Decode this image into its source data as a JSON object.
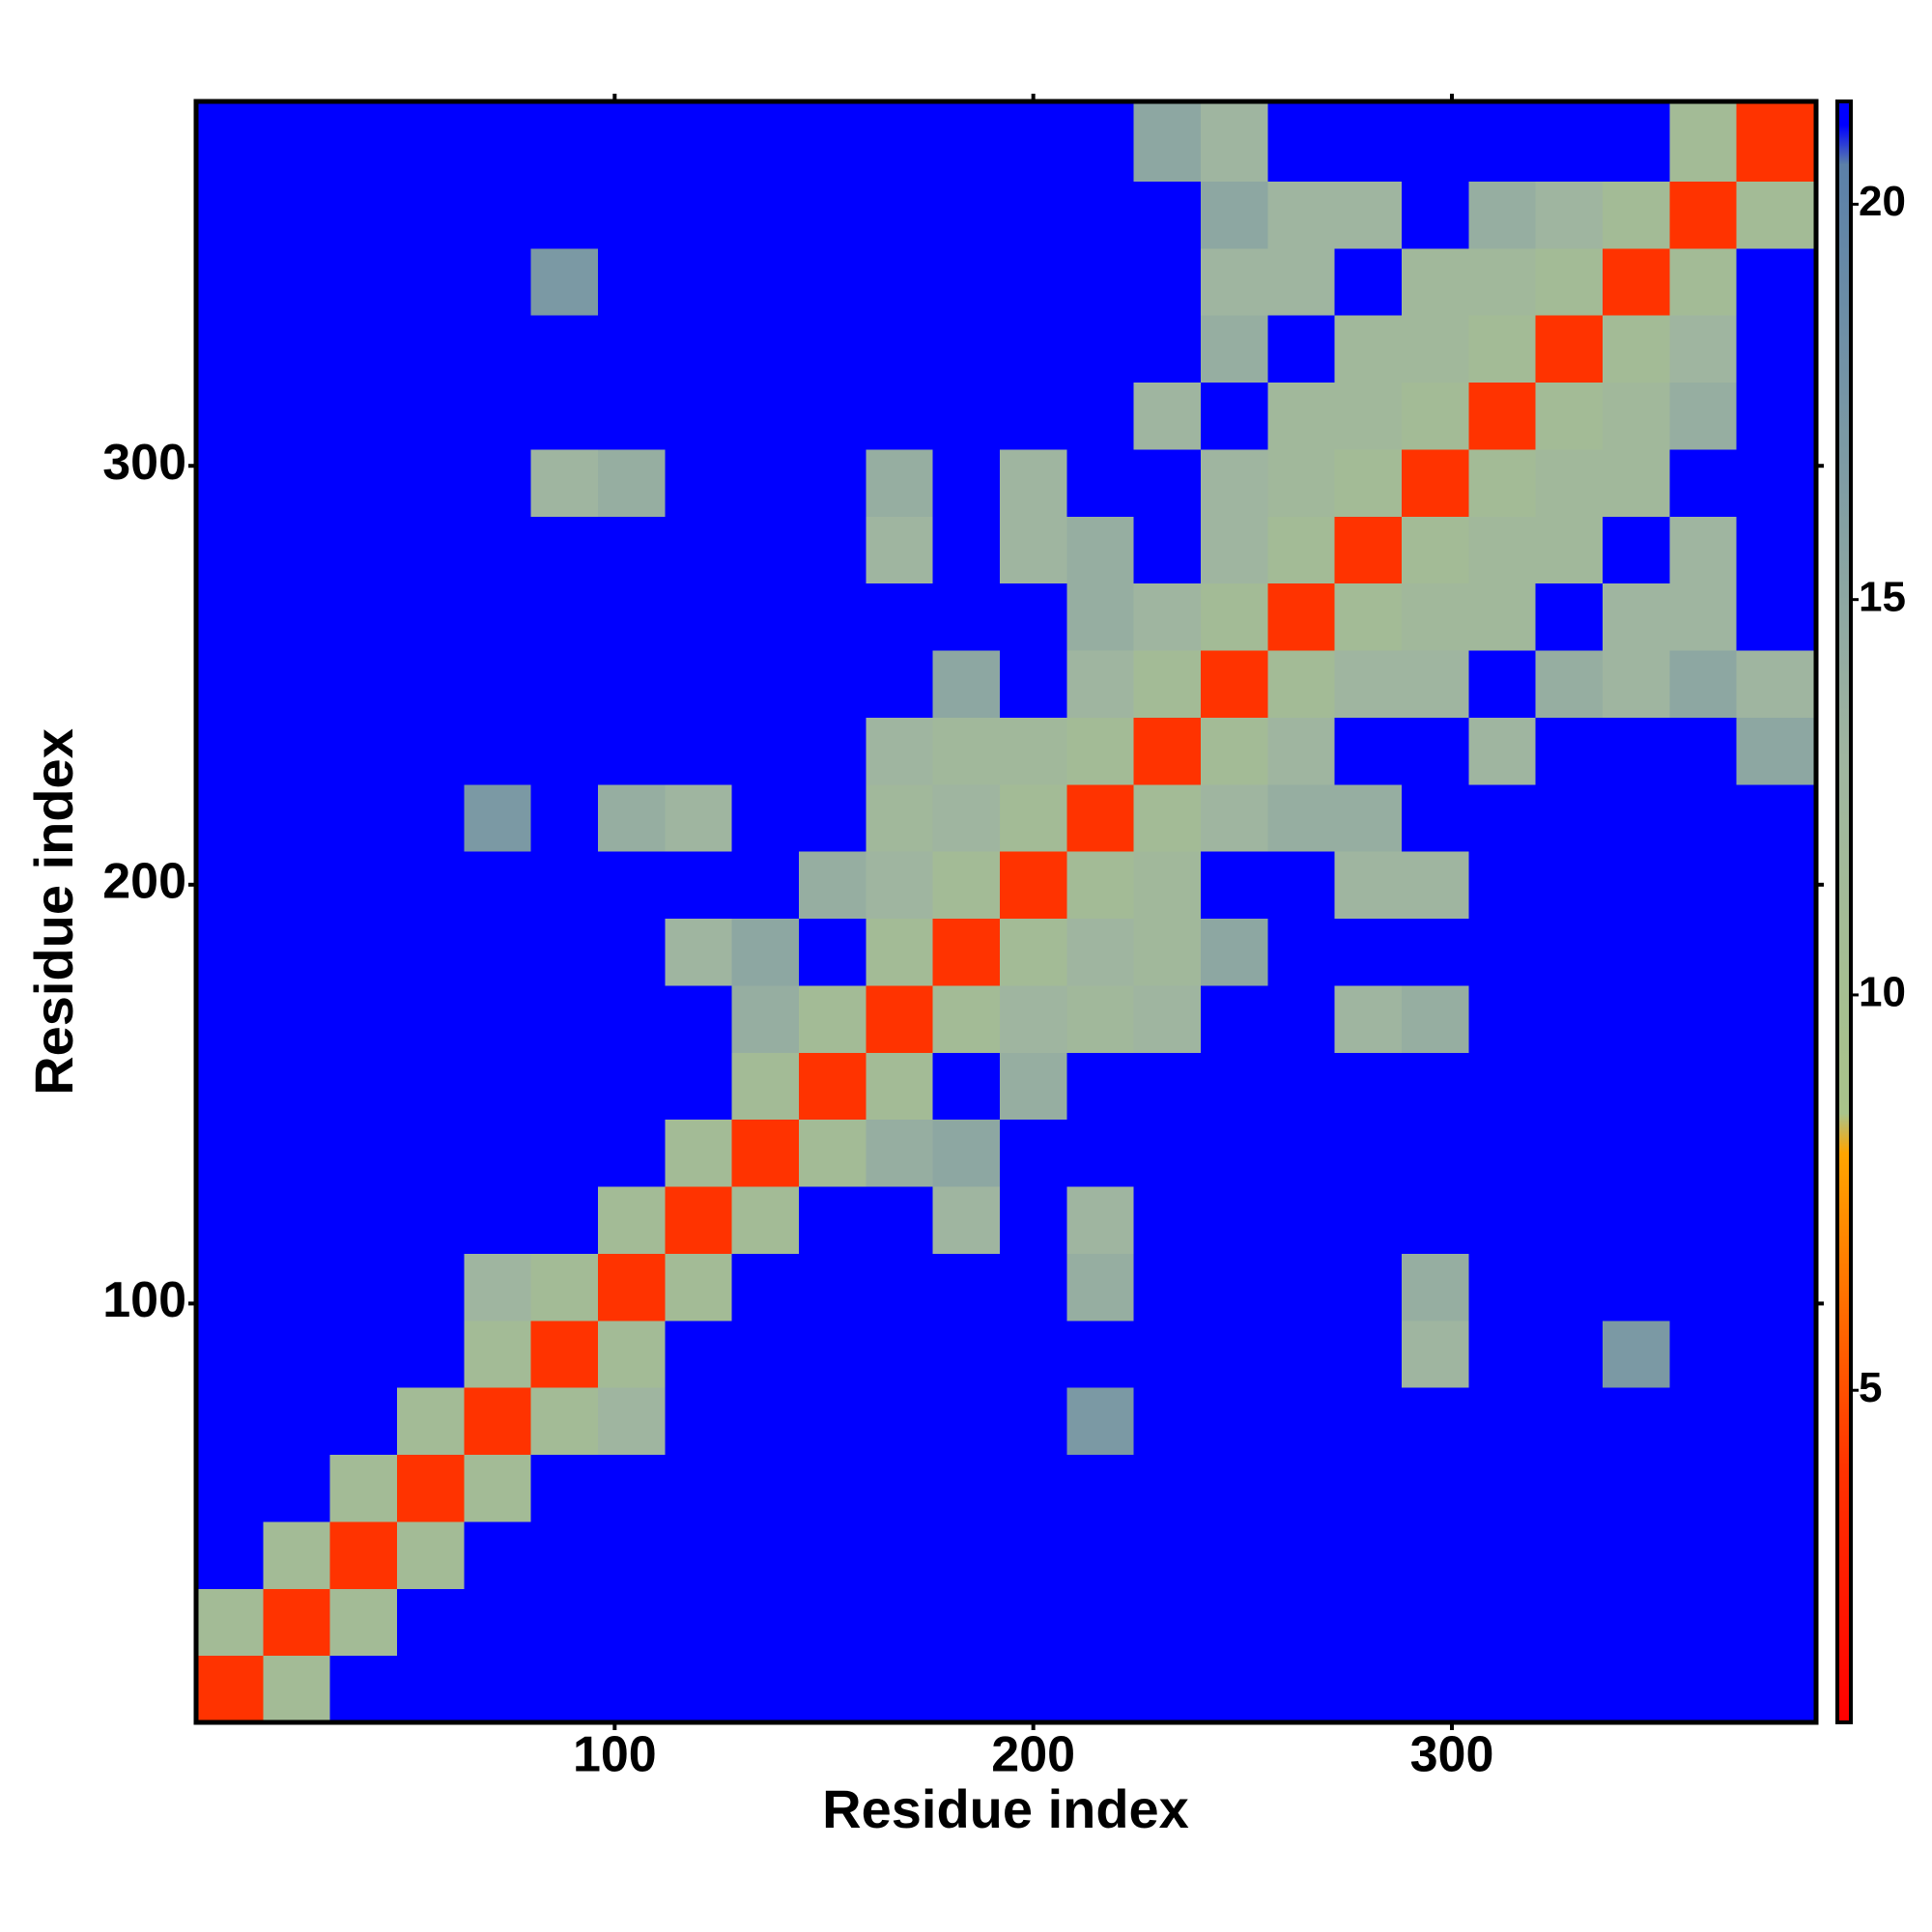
{
  "chart_data": {
    "type": "heatmap",
    "xlabel": "Residue index",
    "ylabel": "Residue index",
    "xlim": [
      0,
      387
    ],
    "ylim": [
      0,
      387
    ],
    "xticks": [
      100,
      200,
      300
    ],
    "yticks": [
      100,
      200,
      300
    ],
    "bins": [
      0,
      16,
      32,
      48,
      64,
      80,
      96,
      112,
      128,
      144,
      160,
      176,
      192,
      208,
      224,
      240,
      256,
      272,
      288,
      304,
      320,
      336,
      352,
      368,
      387
    ],
    "z": [
      [
        4,
        11,
        21,
        21,
        21,
        21,
        21,
        21,
        21,
        21,
        21,
        21,
        21,
        21,
        21,
        21,
        21,
        21,
        21,
        21,
        21,
        21,
        21,
        21
      ],
      [
        11,
        4,
        11,
        21,
        21,
        21,
        21,
        21,
        21,
        21,
        21,
        21,
        21,
        21,
        21,
        21,
        21,
        21,
        21,
        21,
        21,
        21,
        21,
        21
      ],
      [
        21,
        11,
        4,
        11,
        21,
        21,
        21,
        21,
        21,
        21,
        21,
        21,
        21,
        21,
        21,
        21,
        21,
        21,
        21,
        21,
        21,
        21,
        21,
        21
      ],
      [
        21,
        21,
        11,
        4,
        11,
        21,
        21,
        21,
        21,
        21,
        21,
        21,
        21,
        21,
        21,
        21,
        21,
        21,
        21,
        21,
        21,
        21,
        21,
        21
      ],
      [
        21,
        21,
        21,
        11,
        4,
        11,
        13,
        21,
        21,
        21,
        21,
        21,
        21,
        17,
        21,
        21,
        21,
        21,
        21,
        21,
        21,
        21,
        21,
        21
      ],
      [
        21,
        21,
        21,
        21,
        11,
        4,
        11,
        21,
        21,
        21,
        21,
        21,
        21,
        21,
        21,
        21,
        21,
        21,
        13,
        21,
        21,
        17,
        21,
        21
      ],
      [
        21,
        21,
        21,
        21,
        13,
        11,
        4,
        11,
        21,
        21,
        21,
        21,
        21,
        14,
        21,
        21,
        21,
        21,
        14,
        21,
        21,
        21,
        21,
        21
      ],
      [
        21,
        21,
        21,
        21,
        21,
        21,
        11,
        4,
        11,
        21,
        21,
        13,
        21,
        13,
        21,
        21,
        21,
        21,
        21,
        21,
        21,
        21,
        21,
        21
      ],
      [
        21,
        21,
        21,
        21,
        21,
        21,
        21,
        11,
        4,
        11,
        14,
        15,
        21,
        21,
        21,
        21,
        21,
        21,
        21,
        21,
        21,
        21,
        21,
        21
      ],
      [
        21,
        21,
        21,
        21,
        21,
        21,
        21,
        21,
        11,
        4,
        11,
        21,
        14,
        21,
        21,
        21,
        21,
        21,
        21,
        21,
        21,
        21,
        21,
        21
      ],
      [
        21,
        21,
        21,
        21,
        21,
        21,
        21,
        21,
        14,
        11,
        4,
        11,
        13,
        12,
        13,
        21,
        21,
        13,
        14,
        21,
        21,
        21,
        21,
        21
      ],
      [
        21,
        21,
        21,
        21,
        21,
        21,
        21,
        13,
        15,
        21,
        11,
        4,
        11,
        13,
        12,
        15,
        21,
        21,
        21,
        21,
        21,
        21,
        21,
        21
      ],
      [
        21,
        21,
        21,
        21,
        21,
        21,
        21,
        21,
        21,
        14,
        13,
        11,
        4,
        11,
        12,
        21,
        21,
        13,
        13,
        21,
        21,
        21,
        21,
        21
      ],
      [
        21,
        21,
        21,
        21,
        17,
        21,
        14,
        13,
        21,
        21,
        12,
        13,
        11,
        4,
        11,
        13,
        14,
        14,
        21,
        21,
        21,
        21,
        21,
        21
      ],
      [
        21,
        21,
        21,
        21,
        21,
        21,
        21,
        21,
        21,
        21,
        13,
        12,
        12,
        11,
        4,
        11,
        13,
        21,
        21,
        13,
        21,
        21,
        21,
        15
      ],
      [
        21,
        21,
        21,
        21,
        21,
        21,
        21,
        21,
        21,
        21,
        21,
        15,
        21,
        13,
        11,
        4,
        11,
        13,
        13,
        21,
        14,
        13,
        15,
        13
      ],
      [
        21,
        21,
        21,
        21,
        21,
        21,
        21,
        21,
        21,
        21,
        21,
        21,
        21,
        14,
        13,
        11,
        4,
        11,
        12,
        12,
        21,
        13,
        13,
        21
      ],
      [
        21,
        21,
        21,
        21,
        21,
        21,
        21,
        21,
        21,
        21,
        13,
        21,
        13,
        14,
        21,
        13,
        11,
        4,
        11,
        12,
        12,
        21,
        13,
        21
      ],
      [
        21,
        21,
        21,
        21,
        21,
        13,
        14,
        21,
        21,
        21,
        14,
        21,
        13,
        21,
        21,
        13,
        12,
        11,
        4,
        11,
        12,
        12,
        21,
        21
      ],
      [
        21,
        21,
        21,
        21,
        21,
        21,
        21,
        21,
        21,
        21,
        21,
        21,
        21,
        21,
        13,
        21,
        12,
        12,
        11,
        4,
        11,
        12,
        14,
        21
      ],
      [
        21,
        21,
        21,
        21,
        21,
        21,
        21,
        21,
        21,
        21,
        21,
        21,
        21,
        21,
        21,
        14,
        21,
        12,
        12,
        11,
        4,
        11,
        13,
        21
      ],
      [
        21,
        21,
        21,
        21,
        21,
        17,
        21,
        21,
        21,
        21,
        21,
        21,
        21,
        21,
        21,
        13,
        13,
        21,
        12,
        12,
        11,
        4,
        11,
        21
      ],
      [
        21,
        21,
        21,
        21,
        21,
        21,
        21,
        21,
        21,
        21,
        21,
        21,
        21,
        21,
        21,
        15,
        13,
        13,
        21,
        14,
        13,
        11,
        4,
        11
      ],
      [
        21,
        21,
        21,
        21,
        21,
        21,
        21,
        21,
        21,
        21,
        21,
        21,
        21,
        21,
        15,
        13,
        21,
        21,
        21,
        21,
        21,
        21,
        11,
        4
      ]
    ],
    "colorbar": {
      "lim": [
        0.8,
        21.3
      ],
      "ticks": [
        5,
        10,
        15,
        20
      ],
      "stops": [
        [
          0.8,
          "#ff0000"
        ],
        [
          4,
          "#ff3300"
        ],
        [
          8,
          "#ffa500"
        ],
        [
          8.5,
          "#a9c38a"
        ],
        [
          13,
          "#9fb5a0"
        ],
        [
          20.5,
          "#5b80a8"
        ],
        [
          21,
          "#0000ff"
        ]
      ]
    }
  }
}
